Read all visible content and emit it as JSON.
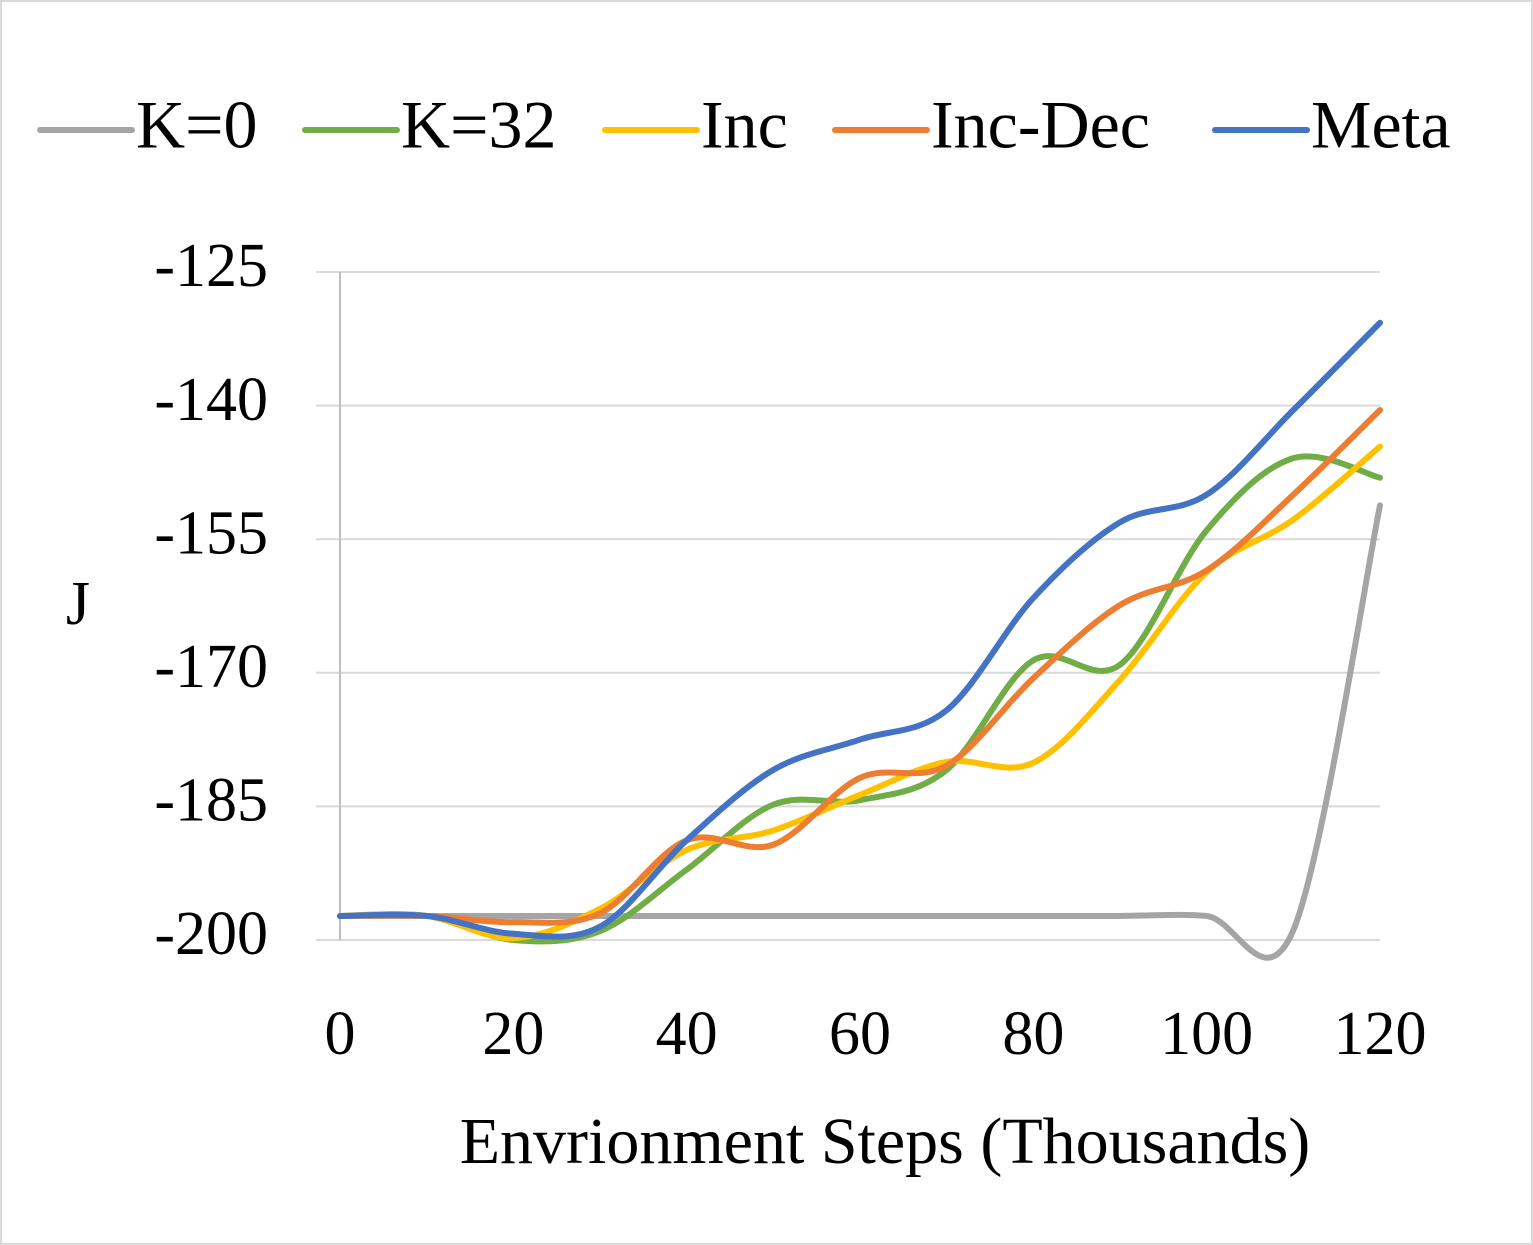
{
  "chart_data": {
    "type": "line",
    "x_label": "Envrionment Steps (Thousands)",
    "y_label": "J",
    "x": [
      0,
      10,
      20,
      30,
      40,
      50,
      60,
      70,
      80,
      90,
      100,
      110,
      120
    ],
    "series": [
      {
        "name": "K=0",
        "color": "#a5a5a5",
        "values": [
          -197.3,
          -197.3,
          -197.3,
          -197.3,
          -197.3,
          -197.3,
          -197.3,
          -197.3,
          -197.3,
          -197.3,
          -197.3,
          -198.9,
          -151.2
        ]
      },
      {
        "name": "K=32",
        "color": "#70ad47",
        "values": [
          -197.3,
          -197.3,
          -200,
          -199,
          -192.1,
          -184.8,
          -184.3,
          -180.9,
          -168.6,
          -169.1,
          -154,
          -145.9,
          -148.1
        ]
      },
      {
        "name": "Inc",
        "color": "#ffc000",
        "values": [
          -197.3,
          -197.3,
          -199.8,
          -196.5,
          -189.9,
          -187.7,
          -183.7,
          -180,
          -180.1,
          -170.8,
          -158.7,
          -152.8,
          -144.6
        ]
      },
      {
        "name": "Inc-Dec",
        "color": "#ed7d31",
        "values": [
          -197.3,
          -197.3,
          -198,
          -197,
          -188.8,
          -189.3,
          -181.8,
          -180.4,
          -170.6,
          -162.4,
          -158.5,
          -150,
          -140.5
        ]
      },
      {
        "name": "Meta",
        "color": "#4472c4",
        "values": [
          -197.3,
          -197.3,
          -199.3,
          -198.5,
          -188.8,
          -180.9,
          -177.5,
          -174.2,
          -161.6,
          -153.1,
          -150,
          -140.5,
          -130.7
        ]
      }
    ],
    "xlim": [
      0,
      120
    ],
    "xticks": [
      0,
      20,
      40,
      60,
      80,
      100,
      120
    ],
    "ylim": [
      -200,
      -125
    ],
    "yticks": [
      -200,
      -185,
      -170,
      -155,
      -140,
      -125
    ],
    "grid": true,
    "legend": "top"
  }
}
